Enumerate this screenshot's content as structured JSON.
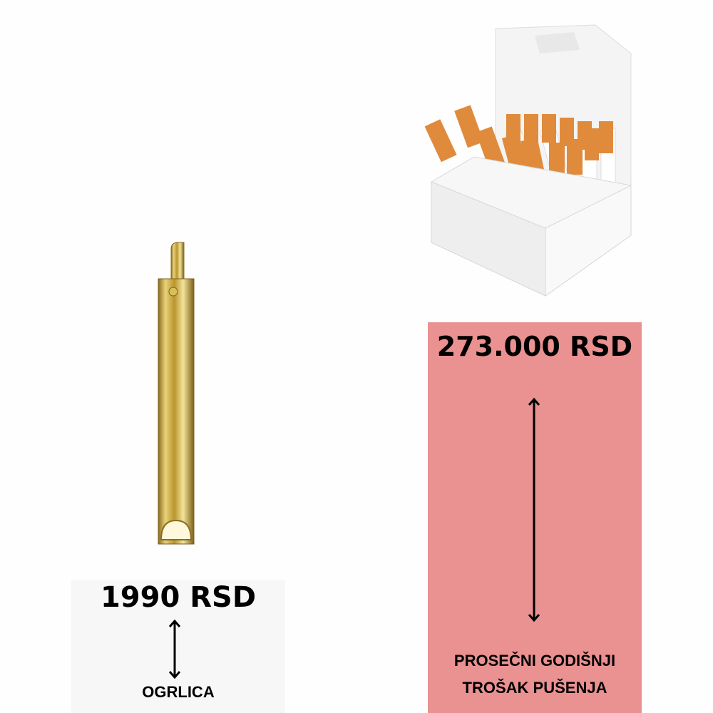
{
  "necklace": {
    "price": "1990 RSD",
    "label": "OGRLICA"
  },
  "smoking": {
    "price": "273.000 RSD",
    "label_line1": "PROSEČNI GODIŠNJI",
    "label_line2": "TROŠAK PUŠENJA"
  },
  "colors": {
    "panel_pink": "#ea9191",
    "panel_grey": "#f7f7f7",
    "gold": "#c9a93a",
    "cigarette_filter": "#e08a3c"
  }
}
